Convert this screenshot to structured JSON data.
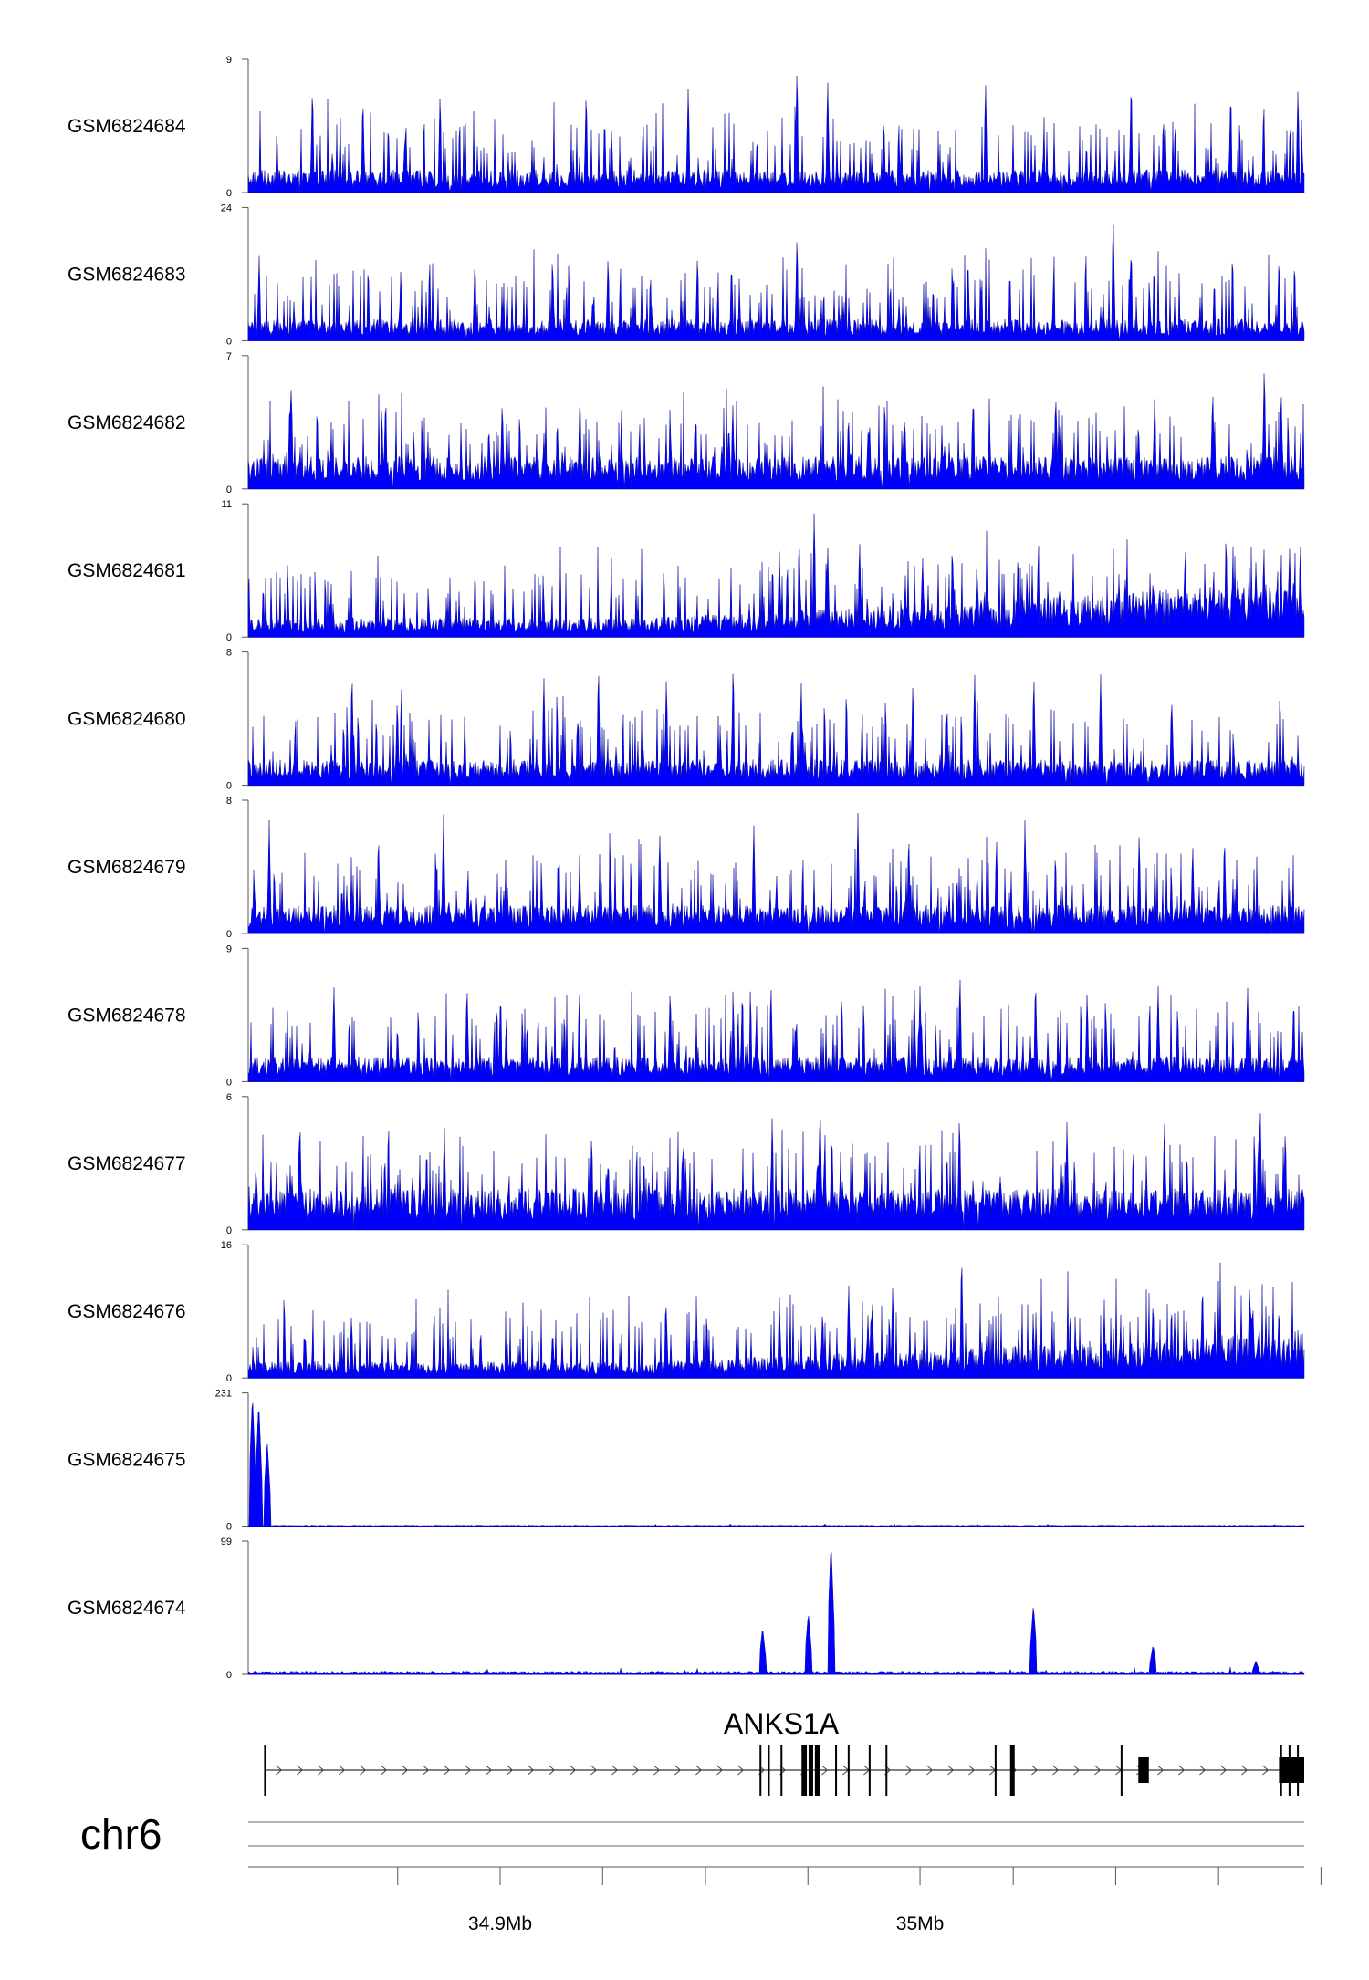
{
  "chart_data": {
    "type": "area",
    "chromosome": "chr6",
    "x_range_mb": [
      34.84,
      35.0915
    ],
    "fill_color": "#0000ff",
    "tracks": [
      {
        "name": "GSM6824684",
        "ymax": 9,
        "ymin": 0,
        "profile": "noise",
        "baseline": 1.0,
        "peaks": [
          [
            34.8553,
            7.6
          ],
          [
            34.8673,
            6.8
          ],
          [
            34.8857,
            7.0
          ],
          [
            34.9205,
            7.2
          ],
          [
            34.9448,
            7.4
          ],
          [
            34.9707,
            8.9
          ],
          [
            34.978,
            7.9
          ],
          [
            35.0156,
            7.8
          ],
          [
            35.0503,
            8.0
          ],
          [
            35.074,
            7.3
          ],
          [
            35.09,
            7.1
          ]
        ]
      },
      {
        "name": "GSM6824683",
        "ymax": 24,
        "ymin": 0,
        "profile": "noise",
        "baseline": 2.5,
        "peaks": [
          [
            34.8426,
            15.5
          ],
          [
            34.894,
            15.5
          ],
          [
            34.9125,
            14.5
          ],
          [
            34.9257,
            16.0
          ],
          [
            34.947,
            16.0
          ],
          [
            34.9551,
            15.0
          ],
          [
            34.9707,
            20.0
          ],
          [
            35.0114,
            16.0
          ],
          [
            35.046,
            24.0
          ],
          [
            35.0503,
            18.0
          ],
          [
            35.0855,
            16.0
          ]
        ]
      },
      {
        "name": "GSM6824682",
        "ymax": 7,
        "ymin": 0,
        "profile": "noise",
        "baseline": 1.1,
        "peaks": [
          [
            34.8499,
            5.0
          ],
          [
            34.8727,
            4.8
          ],
          [
            34.9005,
            4.9
          ],
          [
            34.919,
            5.2
          ],
          [
            34.9554,
            4.6
          ],
          [
            35.0127,
            5.3
          ],
          [
            35.0323,
            5.3
          ],
          [
            35.0559,
            5.2
          ],
          [
            35.0697,
            5.5
          ],
          [
            35.082,
            6.9
          ],
          [
            35.086,
            5.5
          ]
        ]
      },
      {
        "name": "GSM6824681",
        "ymax": 11,
        "ymin": 0,
        "profile": "ramp",
        "baseline": 1.3,
        "peaks": [
          [
            34.9665,
            7.2
          ],
          [
            34.9712,
            8.8
          ],
          [
            34.9748,
            10.8
          ],
          [
            34.978,
            7.8
          ],
          [
            34.9856,
            8.3
          ],
          [
            35.0006,
            7.0
          ],
          [
            35.0078,
            6.3
          ],
          [
            35.0255,
            5.0
          ],
          [
            35.0555,
            5.1
          ],
          [
            35.08,
            6.4
          ],
          [
            35.088,
            7.6
          ]
        ]
      },
      {
        "name": "GSM6824680",
        "ymax": 8,
        "ymin": 0,
        "profile": "noise",
        "baseline": 1.0,
        "peaks": [
          [
            34.8647,
            7.2
          ],
          [
            34.8755,
            5.5
          ],
          [
            34.9104,
            6.8
          ],
          [
            34.9234,
            7.6
          ],
          [
            34.9396,
            6.8
          ],
          [
            34.9555,
            7.8
          ],
          [
            34.9717,
            6.5
          ],
          [
            34.9983,
            6.5
          ],
          [
            35.013,
            7.0
          ],
          [
            35.0271,
            7.0
          ],
          [
            35.043,
            7.0
          ],
          [
            35.06,
            5.0
          ]
        ]
      },
      {
        "name": "GSM6824679",
        "ymax": 8,
        "ymin": 0,
        "profile": "noise",
        "baseline": 1.1,
        "peaks": [
          [
            34.845,
            6.8
          ],
          [
            34.871,
            6.3
          ],
          [
            34.8865,
            7.4
          ],
          [
            34.938,
            6.3
          ],
          [
            34.9604,
            6.8
          ],
          [
            34.9852,
            7.3
          ],
          [
            34.9973,
            6.3
          ],
          [
            35.0182,
            6.0
          ],
          [
            35.025,
            7.0
          ],
          [
            35.0522,
            6.3
          ],
          [
            35.0725,
            6.2
          ]
        ]
      },
      {
        "name": "GSM6824678",
        "ymax": 9,
        "ymin": 0,
        "profile": "noise",
        "baseline": 1.1,
        "peaks": [
          [
            34.8604,
            6.8
          ],
          [
            34.8921,
            6.9
          ],
          [
            34.9001,
            6.4
          ],
          [
            34.9405,
            6.7
          ],
          [
            34.9577,
            6.6
          ],
          [
            34.9645,
            6.9
          ],
          [
            35.0,
            6.6
          ],
          [
            35.0095,
            7.6
          ],
          [
            35.0275,
            7.3
          ],
          [
            35.0398,
            6.3
          ],
          [
            35.0567,
            6.7
          ],
          [
            35.078,
            6.6
          ],
          [
            35.089,
            6.0
          ]
        ]
      },
      {
        "name": "GSM6824677",
        "ymax": 6,
        "ymin": 0,
        "profile": "noise",
        "baseline": 1.2,
        "peaks": [
          [
            34.8523,
            5.3
          ],
          [
            34.8867,
            4.9
          ],
          [
            34.9218,
            4.6
          ],
          [
            34.9436,
            4.4
          ],
          [
            34.9648,
            5.3
          ],
          [
            34.9762,
            6.0
          ],
          [
            35.0094,
            5.5
          ],
          [
            35.035,
            5.0
          ],
          [
            35.0582,
            5.2
          ],
          [
            35.081,
            6.0
          ],
          [
            35.087,
            4.8
          ]
        ]
      },
      {
        "name": "GSM6824676",
        "ymax": 16,
        "ymin": 0,
        "profile": "ramp",
        "baseline": 1.6,
        "peaks": [
          [
            34.8646,
            7.8
          ],
          [
            34.9125,
            6.0
          ],
          [
            34.9665,
            9.8
          ],
          [
            34.9768,
            8.6
          ],
          [
            34.983,
            11.8
          ],
          [
            34.9876,
            7.6
          ],
          [
            34.9935,
            11.5
          ],
          [
            35.0099,
            15.8
          ],
          [
            35.027,
            6.4
          ],
          [
            35.0555,
            9.9
          ],
          [
            35.0785,
            11.5
          ],
          [
            35.0855,
            9.0
          ]
        ]
      },
      {
        "name": "GSM6824675",
        "ymax": 231,
        "ymin": 0,
        "profile": "flat",
        "baseline": 1.5,
        "peaks": [
          [
            34.841,
            230.0
          ],
          [
            34.8425,
            218.0
          ],
          [
            34.8445,
            150.0
          ]
        ]
      },
      {
        "name": "GSM6824674",
        "ymax": 99,
        "ymin": 0,
        "profile": "flat",
        "baseline": 2.0,
        "peaks": [
          [
            34.9625,
            35.0
          ],
          [
            34.9734,
            46.0
          ],
          [
            34.9788,
            99.0
          ],
          [
            35.027,
            52.0
          ],
          [
            35.0555,
            22.0
          ],
          [
            35.08,
            10.0
          ]
        ]
      }
    ],
    "gene": {
      "name": "ANKS1A",
      "start": 34.844,
      "end": 35.0915,
      "strand": "+",
      "exons_thin": [
        34.844,
        34.962,
        34.964,
        34.967,
        34.972,
        34.976,
        34.98,
        34.983,
        34.988,
        34.992,
        35.018,
        35.048,
        35.086,
        35.088,
        35.09
      ],
      "exons_thick": [
        34.9725,
        34.974,
        34.9755,
        35.022
      ],
      "exon_blocks": [
        [
          35.052,
          35.0545
        ],
        [
          35.0855,
          35.0915
        ]
      ]
    },
    "x_axis": {
      "tick_labels": [
        {
          "pos": 34.9,
          "label": "34.9Mb"
        },
        {
          "pos": 35.0,
          "label": "35Mb"
        }
      ],
      "minor_ticks": [
        34.8756,
        34.9,
        34.9244,
        34.9489,
        34.9733,
        35.0,
        35.0222,
        35.0466,
        35.0711,
        35.0955
      ]
    }
  }
}
